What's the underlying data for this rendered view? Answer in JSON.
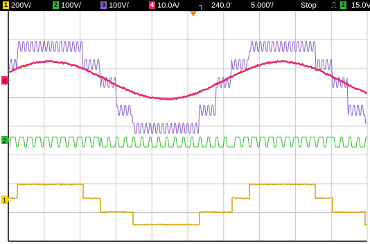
{
  "status_bar": {
    "ch1": {
      "number": "1",
      "scale": "200V/",
      "color": "#f4d60a"
    },
    "ch2": {
      "number": "2",
      "scale": "100V/",
      "color": "#2fbf2f"
    },
    "ch3": {
      "number": "3",
      "scale": "100V/",
      "color": "#8a5fd0"
    },
    "ch4": {
      "number": "4",
      "scale": "10.0A/",
      "color": "#e8275e"
    },
    "trigger_icon": "trigger-edge-icon",
    "delay": "240.0'",
    "timebase": "5.000'/",
    "run_state": "Stop",
    "trigger_source_icon": "pulse-icon",
    "trigger_channel": "2",
    "trigger_level": "15.0V"
  },
  "screen": {
    "background": "#ffffff",
    "grid_color": "#c8c8c8",
    "markers": {
      "ch4": "4",
      "ch2": "2",
      "ch1": "1"
    }
  }
}
